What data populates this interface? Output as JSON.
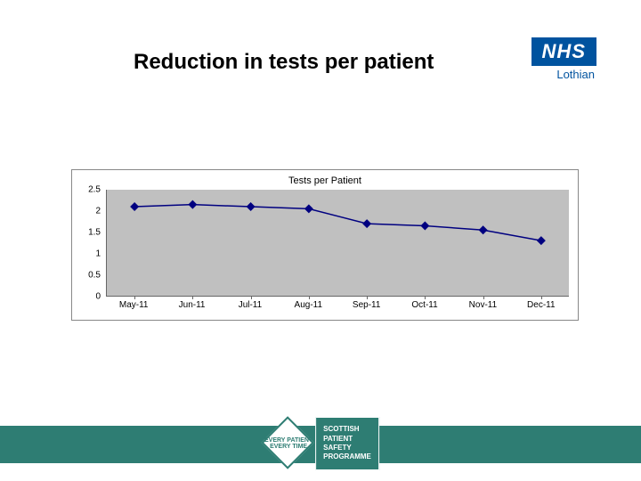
{
  "title": "Reduction in tests per patient",
  "nhs_logo": {
    "main": "NHS",
    "sub": "Lothian",
    "bg_color": "#00539f",
    "text_color": "#ffffff"
  },
  "chart": {
    "type": "line",
    "title": "Tests per Patient",
    "title_fontsize": 11,
    "categories": [
      "May-11",
      "Jun-11",
      "Jul-11",
      "Aug-11",
      "Sep-11",
      "Oct-11",
      "Nov-11",
      "Dec-11"
    ],
    "values": [
      2.1,
      2.15,
      2.1,
      2.05,
      1.7,
      1.65,
      1.55,
      1.3
    ],
    "ylim": [
      0,
      2.5
    ],
    "ytick_step": 0.5,
    "yticks": [
      "0",
      "0.5",
      "1",
      "1.5",
      "2",
      "2.5"
    ],
    "line_color": "#000080",
    "marker_color": "#000080",
    "marker_style": "diamond",
    "marker_size": 5,
    "line_width": 1.5,
    "plot_bg": "#c0c0c0",
    "chart_bg": "#ffffff",
    "axis_color": "#666666",
    "label_fontsize": 10,
    "label_color": "#000000"
  },
  "footer": {
    "band_color": "#2e7d73",
    "logo_diamond_text": "EVERY PATIENT EVERY TIME",
    "logo_block_lines": [
      "SCOTTISH",
      "PATIENT",
      "SAFETY",
      "PROGRAMME"
    ]
  }
}
